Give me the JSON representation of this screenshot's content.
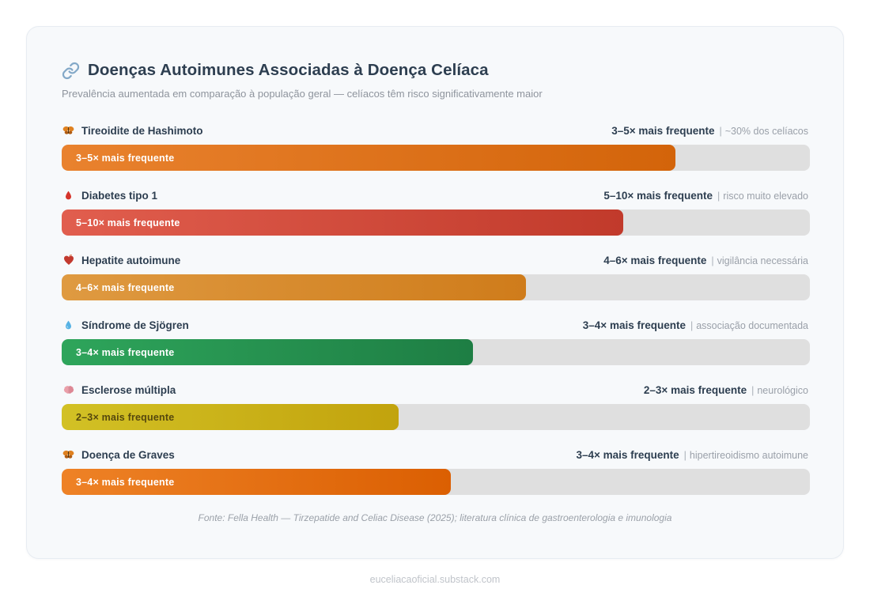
{
  "header": {
    "icon": "link-icon",
    "title": "Doenças Autoimunes Associadas à Doença Celíaca",
    "subtitle": "Prevalência aumentada em comparação à população geral — celíacos têm risco significativamente maior"
  },
  "meta": {
    "separator": "|"
  },
  "chart_data": {
    "type": "bar",
    "orientation": "horizontal",
    "title": "Doenças Autoimunes Associadas à Doença Celíaca",
    "subtitle": "Prevalência aumentada em comparação à população geral — celíacos têm risco significativamente maior",
    "categories": [
      "Tireoidite de Hashimoto",
      "Diabetes tipo 1",
      "Hepatite autoimune",
      "Síndrome de Sjögren",
      "Esclerose múltipla",
      "Doença de Graves"
    ],
    "ratio_ranges": [
      [
        3,
        5
      ],
      [
        5,
        10
      ],
      [
        4,
        6
      ],
      [
        3,
        4
      ],
      [
        2,
        3
      ],
      [
        3,
        4
      ]
    ],
    "value_labels": [
      "3–5× mais frequente",
      "5–10× mais frequente",
      "4–6× mais frequente",
      "3–4× mais frequente",
      "2–3× mais frequente",
      "3–4× mais frequente"
    ],
    "notes": [
      "~30% dos celíacos",
      "risco muito elevado",
      "vigilância necessária",
      "associação documentada",
      "neurológico",
      "hipertireoidismo autoimune"
    ],
    "bar_fill_percent": [
      82,
      75,
      62,
      55,
      45,
      52
    ],
    "bar_gradients": [
      [
        "#e9822e",
        "#d3640a"
      ],
      [
        "#e15e4e",
        "#c13a2b"
      ],
      [
        "#df9a41",
        "#cf7c1b"
      ],
      [
        "#2ea55b",
        "#1e7e44"
      ],
      [
        "#d2c125",
        "#c2a30d"
      ],
      [
        "#ee8226",
        "#db5f02"
      ]
    ],
    "track_color": "#dfdfdf",
    "xlabel": "",
    "ylabel": "",
    "grid": false,
    "legend": false
  },
  "rows": [
    {
      "icon": "butterfly-icon",
      "name": "Tireoidite de Hashimoto",
      "value": "3–5× mais frequente",
      "note": "~30% dos celíacos",
      "bar_label": "3–5× mais frequente",
      "bar_percent": 82,
      "colors": [
        "#e9822e",
        "#d3640a"
      ],
      "label_color": "#ffffff"
    },
    {
      "icon": "blood-drop-icon",
      "name": "Diabetes tipo 1",
      "value": "5–10× mais frequente",
      "note": "risco muito elevado",
      "bar_label": "5–10× mais frequente",
      "bar_percent": 75,
      "colors": [
        "#e15e4e",
        "#c13a2b"
      ],
      "label_color": "#ffffff"
    },
    {
      "icon": "anatomical-heart-icon",
      "name": "Hepatite autoimune",
      "value": "4–6× mais frequente",
      "note": "vigilância necessária",
      "bar_label": "4–6× mais frequente",
      "bar_percent": 62,
      "colors": [
        "#df9a41",
        "#cf7c1b"
      ],
      "label_color": "#ffffff"
    },
    {
      "icon": "droplet-icon",
      "name": "Síndrome de Sjögren",
      "value": "3–4× mais frequente",
      "note": "associação documentada",
      "bar_label": "3–4× mais frequente",
      "bar_percent": 55,
      "colors": [
        "#2ea55b",
        "#1e7e44"
      ],
      "label_color": "#ffffff"
    },
    {
      "icon": "brain-icon",
      "name": "Esclerose múltipla",
      "value": "2–3× mais frequente",
      "note": "neurológico",
      "bar_label": "2–3× mais frequente",
      "bar_percent": 45,
      "colors": [
        "#d2c125",
        "#c2a30d"
      ],
      "label_color": "#55470e"
    },
    {
      "icon": "butterfly-icon",
      "name": "Doença de Graves",
      "value": "3–4× mais frequente",
      "note": "hipertireoidismo autoimune",
      "bar_label": "3–4× mais frequente",
      "bar_percent": 52,
      "colors": [
        "#ee8226",
        "#db5f02"
      ],
      "label_color": "#ffffff"
    }
  ],
  "footer": {
    "source": "Fonte: Fella Health — Tirzepatide and Celiac Disease (2025); literatura clínica de gastroenterologia e imunologia",
    "site": "euceliacaoficial.substack.com"
  }
}
